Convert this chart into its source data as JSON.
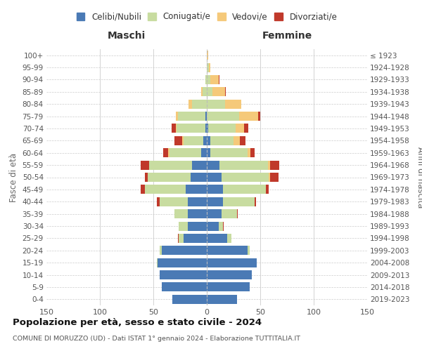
{
  "age_groups": [
    "0-4",
    "5-9",
    "10-14",
    "15-19",
    "20-24",
    "25-29",
    "30-34",
    "35-39",
    "40-44",
    "45-49",
    "50-54",
    "55-59",
    "60-64",
    "65-69",
    "70-74",
    "75-79",
    "80-84",
    "85-89",
    "90-94",
    "95-99",
    "100+"
  ],
  "birth_years": [
    "2019-2023",
    "2014-2018",
    "2009-2013",
    "2004-2008",
    "1999-2003",
    "1994-1998",
    "1989-1993",
    "1984-1988",
    "1979-1983",
    "1974-1978",
    "1969-1973",
    "1964-1968",
    "1959-1963",
    "1954-1958",
    "1949-1953",
    "1944-1948",
    "1939-1943",
    "1934-1938",
    "1929-1933",
    "1924-1928",
    "≤ 1923"
  ],
  "maschi": {
    "celibi": [
      32,
      42,
      44,
      46,
      42,
      22,
      18,
      18,
      18,
      20,
      15,
      14,
      5,
      3,
      1,
      1,
      0,
      0,
      0,
      0,
      0
    ],
    "coniugati": [
      0,
      0,
      0,
      1,
      2,
      4,
      8,
      12,
      26,
      38,
      40,
      40,
      30,
      19,
      27,
      26,
      14,
      4,
      1,
      0,
      0
    ],
    "vedovi": [
      0,
      0,
      0,
      0,
      0,
      0,
      0,
      0,
      0,
      0,
      0,
      0,
      1,
      1,
      1,
      2,
      3,
      1,
      0,
      0,
      0
    ],
    "divorziati": [
      0,
      0,
      0,
      0,
      0,
      1,
      0,
      0,
      3,
      4,
      3,
      8,
      5,
      7,
      4,
      0,
      0,
      0,
      0,
      0,
      0
    ]
  },
  "femmine": {
    "nubili": [
      28,
      40,
      42,
      47,
      38,
      19,
      11,
      14,
      15,
      15,
      14,
      12,
      3,
      3,
      1,
      0,
      0,
      0,
      0,
      0,
      0
    ],
    "coniugate": [
      0,
      0,
      0,
      0,
      2,
      4,
      4,
      14,
      30,
      40,
      44,
      45,
      35,
      22,
      26,
      30,
      17,
      5,
      3,
      2,
      0
    ],
    "vedove": [
      0,
      0,
      0,
      0,
      0,
      0,
      0,
      0,
      0,
      0,
      1,
      2,
      3,
      6,
      8,
      18,
      15,
      12,
      8,
      1,
      1
    ],
    "divorziate": [
      0,
      0,
      0,
      0,
      0,
      0,
      1,
      1,
      1,
      3,
      8,
      9,
      4,
      5,
      4,
      2,
      0,
      1,
      1,
      0,
      0
    ]
  },
  "colors": {
    "celibi_nubili": "#4a7ab5",
    "coniugati": "#c8dca0",
    "vedovi": "#f5c97a",
    "divorziati": "#c0392b"
  },
  "title": "Popolazione per età, sesso e stato civile - 2024",
  "subtitle": "COMUNE DI MORUZZO (UD) - Dati ISTAT 1° gennaio 2024 - Elaborazione TUTTITALIA.IT",
  "xlabel_left": "Maschi",
  "xlabel_right": "Femmine",
  "ylabel_left": "Fasce di età",
  "ylabel_right": "Anni di nascita",
  "xlim": 150,
  "background_color": "#ffffff",
  "grid_color": "#cccccc"
}
